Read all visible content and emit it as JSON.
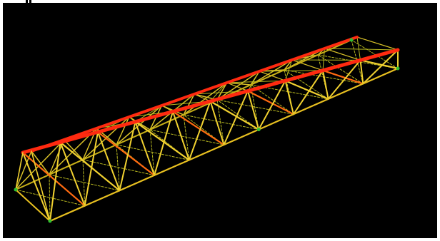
{
  "viewport": {
    "background": "#000000",
    "frame_color": "#ffffff"
  },
  "model": {
    "kind": "3D truss bridge wireframe",
    "panels": 10,
    "colors": {
      "top_chord": "#ff2a10",
      "bottom_chord_near": "#e8c020",
      "bottom_chord_far": "#c8b018",
      "web_near": "#f0d030",
      "web_far": "#d8c028",
      "diagonal_hot": "#ff6a10",
      "bracing": "#b8b820",
      "support": "#30c030"
    }
  }
}
